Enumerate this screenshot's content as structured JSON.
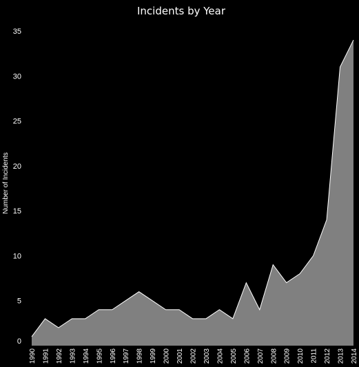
{
  "chart_data": {
    "type": "area",
    "title": "Incidents by Year",
    "xlabel": "",
    "ylabel": "Number of Incidents",
    "x": [
      "1990",
      "1991",
      "1992",
      "1993",
      "1994",
      "1995",
      "1996",
      "1997",
      "1998",
      "1999",
      "2000",
      "2001",
      "2002",
      "2003",
      "2004",
      "2005",
      "2006",
      "2007",
      "2008",
      "2009",
      "2010",
      "2011",
      "2012",
      "2013",
      "2014"
    ],
    "values": [
      1,
      3,
      2,
      3,
      3,
      4,
      4,
      5,
      6,
      5,
      4,
      4,
      3,
      3,
      4,
      3,
      7,
      4,
      9,
      7,
      8,
      10,
      14,
      31,
      34
    ],
    "yticks": [
      0,
      5,
      10,
      15,
      20,
      25,
      30,
      35
    ],
    "ylim": [
      0,
      35
    ],
    "grid": false,
    "legend": "none",
    "colors": {
      "background": "#000000",
      "fill": "#808080",
      "line": "#ffffff",
      "text": "#ffffff"
    }
  }
}
